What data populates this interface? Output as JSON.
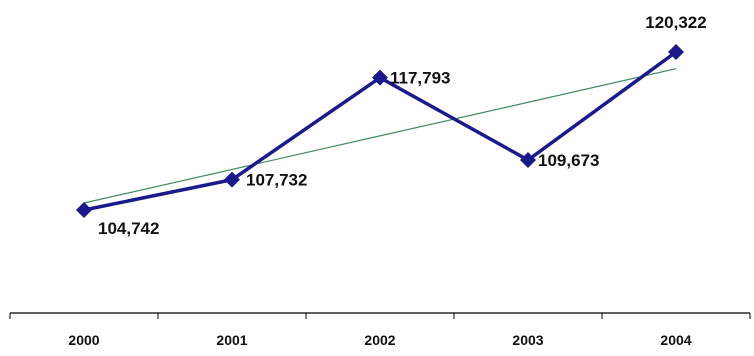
{
  "chart_data": {
    "type": "line",
    "categories": [
      "2000",
      "2001",
      "2002",
      "2003",
      "2004"
    ],
    "series": [
      {
        "values": [
          104742,
          107732,
          117793,
          109673,
          120322
        ],
        "color": "#1a1a8c",
        "marker": "diamond"
      }
    ],
    "data_labels": [
      "104,742",
      "107,732",
      "117,793",
      "109,673",
      "120,322"
    ],
    "trendline": {
      "type": "linear",
      "color": "#3d8c5a"
    },
    "title": "",
    "xlabel": "",
    "ylabel": "",
    "y_axis_visible": false,
    "grid": false
  }
}
